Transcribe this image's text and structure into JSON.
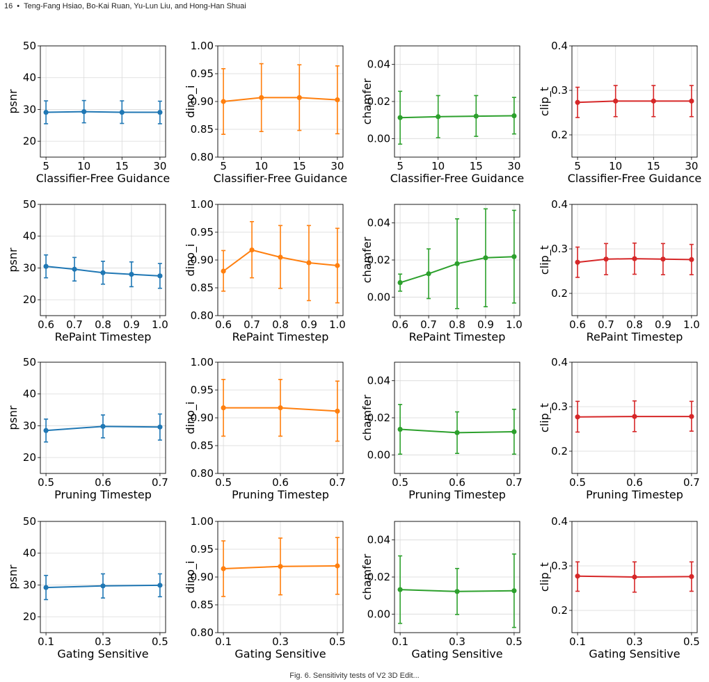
{
  "header": {
    "page_number": "16",
    "separator": "•",
    "authors": "Teng-Fang Hsiao, Bo-Kai Ruan, Yu-Lun Liu, and Hong-Han Shuai"
  },
  "caption": "Fig. 6. Sensitivity tests of V2 3D Edit...",
  "colors": {
    "psnr": "#1f77b4",
    "dino_i": "#ff7f0e",
    "chamfer": "#2ca02c",
    "clip_t": "#d62728"
  },
  "chart_data": [
    {
      "type": "line",
      "row": 0,
      "col": 0,
      "xlabel": "Classifier-Free Guidance",
      "ylabel": "psnr",
      "categories": [
        "5",
        "10",
        "15",
        "30"
      ],
      "ylim": [
        15,
        50
      ],
      "yticks": [
        "20",
        "30",
        "40",
        "50"
      ],
      "color": "#1f77b4",
      "grid": true,
      "values": [
        29.1,
        29.3,
        29.1,
        29.1
      ],
      "err_low": [
        25.5,
        25.8,
        25.6,
        25.5
      ],
      "err_high": [
        32.7,
        32.8,
        32.7,
        32.6
      ]
    },
    {
      "type": "line",
      "row": 0,
      "col": 1,
      "xlabel": "Classifier-Free Guidance",
      "ylabel": "dino_i",
      "categories": [
        "5",
        "10",
        "15",
        "30"
      ],
      "ylim": [
        0.8,
        1.0
      ],
      "yticks": [
        "0.80",
        "0.85",
        "0.90",
        "0.95",
        "1.00"
      ],
      "color": "#ff7f0e",
      "grid": true,
      "values": [
        0.9,
        0.907,
        0.907,
        0.903
      ],
      "err_low": [
        0.841,
        0.846,
        0.848,
        0.842
      ],
      "err_high": [
        0.959,
        0.968,
        0.966,
        0.964
      ]
    },
    {
      "type": "line",
      "row": 0,
      "col": 2,
      "xlabel": "Classifier-Free Guidance",
      "ylabel": "chamfer",
      "categories": [
        "5",
        "10",
        "15",
        "30"
      ],
      "ylim": [
        -0.01,
        0.05
      ],
      "yticks": [
        "0.00",
        "0.02",
        "0.04"
      ],
      "color": "#2ca02c",
      "grid": true,
      "values": [
        0.0113,
        0.0118,
        0.0121,
        0.0123
      ],
      "err_low": [
        -0.003,
        0.0005,
        0.0012,
        0.0025
      ],
      "err_high": [
        0.0255,
        0.0232,
        0.0232,
        0.0222
      ]
    },
    {
      "type": "line",
      "row": 0,
      "col": 3,
      "xlabel": "Classifier-Free Guidance",
      "ylabel": "clip_t",
      "categories": [
        "5",
        "10",
        "15",
        "30"
      ],
      "ylim": [
        0.15,
        0.4
      ],
      "yticks": [
        "0.2",
        "0.3",
        "0.4"
      ],
      "color": "#d62728",
      "grid": true,
      "values": [
        0.273,
        0.276,
        0.276,
        0.276
      ],
      "err_low": [
        0.239,
        0.241,
        0.241,
        0.241
      ],
      "err_high": [
        0.307,
        0.311,
        0.311,
        0.311
      ]
    },
    {
      "type": "line",
      "row": 1,
      "col": 0,
      "xlabel": "RePaint Timestep",
      "ylabel": "psnr",
      "categories": [
        "0.6",
        "0.7",
        "0.8",
        "0.9",
        "1.0"
      ],
      "ylim": [
        15,
        50
      ],
      "yticks": [
        "20",
        "30",
        "40",
        "50"
      ],
      "color": "#1f77b4",
      "grid": true,
      "values": [
        30.5,
        29.6,
        28.5,
        28.0,
        27.5
      ],
      "err_low": [
        26.9,
        25.9,
        24.9,
        24.1,
        23.6
      ],
      "err_high": [
        34.1,
        33.3,
        32.1,
        31.9,
        31.4
      ]
    },
    {
      "type": "line",
      "row": 1,
      "col": 1,
      "xlabel": "RePaint Timestep",
      "ylabel": "dino_i",
      "categories": [
        "0.6",
        "0.7",
        "0.8",
        "0.9",
        "1.0"
      ],
      "ylim": [
        0.8,
        1.0
      ],
      "yticks": [
        "0.80",
        "0.85",
        "0.90",
        "0.95",
        "1.00"
      ],
      "color": "#ff7f0e",
      "grid": true,
      "values": [
        0.88,
        0.918,
        0.905,
        0.895,
        0.89
      ],
      "err_low": [
        0.844,
        0.868,
        0.849,
        0.827,
        0.823
      ],
      "err_high": [
        0.917,
        0.969,
        0.962,
        0.962,
        0.957
      ]
    },
    {
      "type": "line",
      "row": 1,
      "col": 2,
      "xlabel": "RePaint Timestep",
      "ylabel": "chamfer",
      "categories": [
        "0.6",
        "0.7",
        "0.8",
        "0.9",
        "1.0"
      ],
      "ylim": [
        -0.01,
        0.05
      ],
      "yticks": [
        "0.00",
        "0.02",
        "0.04"
      ],
      "color": "#2ca02c",
      "grid": true,
      "values": [
        0.0078,
        0.0126,
        0.018,
        0.0212,
        0.0218
      ],
      "err_low": [
        0.0032,
        -0.0008,
        -0.0062,
        -0.0052,
        -0.0032
      ],
      "err_high": [
        0.0124,
        0.026,
        0.0422,
        0.0476,
        0.0468
      ]
    },
    {
      "type": "line",
      "row": 1,
      "col": 3,
      "xlabel": "RePaint Timestep",
      "ylabel": "clip_t",
      "categories": [
        "0.6",
        "0.7",
        "0.8",
        "0.9",
        "1.0"
      ],
      "ylim": [
        0.15,
        0.4
      ],
      "yticks": [
        "0.2",
        "0.3",
        "0.4"
      ],
      "color": "#d62728",
      "grid": true,
      "values": [
        0.27,
        0.277,
        0.278,
        0.277,
        0.276
      ],
      "err_low": [
        0.236,
        0.242,
        0.243,
        0.242,
        0.242
      ],
      "err_high": [
        0.304,
        0.312,
        0.313,
        0.312,
        0.31
      ]
    },
    {
      "type": "line",
      "row": 2,
      "col": 0,
      "xlabel": "Pruning Timestep",
      "ylabel": "psnr",
      "categories": [
        "0.5",
        "0.6",
        "0.7"
      ],
      "ylim": [
        15,
        50
      ],
      "yticks": [
        "20",
        "30",
        "40",
        "50"
      ],
      "color": "#1f77b4",
      "grid": true,
      "values": [
        28.5,
        29.8,
        29.6
      ],
      "err_low": [
        24.9,
        26.2,
        25.5
      ],
      "err_high": [
        32.1,
        33.4,
        33.7
      ]
    },
    {
      "type": "line",
      "row": 2,
      "col": 1,
      "xlabel": "Pruning Timestep",
      "ylabel": "dino_i",
      "categories": [
        "0.5",
        "0.6",
        "0.7"
      ],
      "ylim": [
        0.8,
        1.0
      ],
      "yticks": [
        "0.80",
        "0.85",
        "0.90",
        "0.95",
        "1.00"
      ],
      "color": "#ff7f0e",
      "grid": true,
      "values": [
        0.918,
        0.918,
        0.912
      ],
      "err_low": [
        0.867,
        0.867,
        0.858
      ],
      "err_high": [
        0.969,
        0.969,
        0.966
      ]
    },
    {
      "type": "line",
      "row": 2,
      "col": 2,
      "xlabel": "Pruning Timestep",
      "ylabel": "chamfer",
      "categories": [
        "0.5",
        "0.6",
        "0.7"
      ],
      "ylim": [
        -0.01,
        0.05
      ],
      "yticks": [
        "0.00",
        "0.02",
        "0.04"
      ],
      "color": "#2ca02c",
      "grid": true,
      "values": [
        0.0138,
        0.012,
        0.0125
      ],
      "err_low": [
        0.0004,
        0.0008,
        0.0004
      ],
      "err_high": [
        0.0272,
        0.0232,
        0.0246
      ]
    },
    {
      "type": "line",
      "row": 2,
      "col": 3,
      "xlabel": "Pruning Timestep",
      "ylabel": "clip_t",
      "categories": [
        "0.5",
        "0.6",
        "0.7"
      ],
      "ylim": [
        0.15,
        0.4
      ],
      "yticks": [
        "0.2",
        "0.3",
        "0.4"
      ],
      "color": "#d62728",
      "grid": true,
      "values": [
        0.277,
        0.278,
        0.278
      ],
      "err_low": [
        0.243,
        0.244,
        0.245
      ],
      "err_high": [
        0.312,
        0.313,
        0.312
      ]
    },
    {
      "type": "line",
      "row": 3,
      "col": 0,
      "xlabel": "Gating Sensitive",
      "ylabel": "psnr",
      "categories": [
        "0.1",
        "0.3",
        "0.5"
      ],
      "ylim": [
        15,
        50
      ],
      "yticks": [
        "20",
        "30",
        "40",
        "50"
      ],
      "color": "#1f77b4",
      "grid": true,
      "values": [
        29.2,
        29.7,
        29.9
      ],
      "err_low": [
        25.4,
        25.9,
        26.3
      ],
      "err_high": [
        33.0,
        33.5,
        33.5
      ]
    },
    {
      "type": "line",
      "row": 3,
      "col": 1,
      "xlabel": "Gating Sensitive",
      "ylabel": "dino_i",
      "categories": [
        "0.1",
        "0.3",
        "0.5"
      ],
      "ylim": [
        0.8,
        1.0
      ],
      "yticks": [
        "0.80",
        "0.85",
        "0.90",
        "0.95",
        "1.00"
      ],
      "color": "#ff7f0e",
      "grid": true,
      "values": [
        0.915,
        0.919,
        0.92
      ],
      "err_low": [
        0.865,
        0.868,
        0.869
      ],
      "err_high": [
        0.965,
        0.97,
        0.971
      ]
    },
    {
      "type": "line",
      "row": 3,
      "col": 2,
      "xlabel": "Gating Sensitive",
      "ylabel": "chamfer",
      "categories": [
        "0.1",
        "0.3",
        "0.5"
      ],
      "ylim": [
        -0.01,
        0.05
      ],
      "yticks": [
        "0.00",
        "0.02",
        "0.04"
      ],
      "color": "#2ca02c",
      "grid": true,
      "values": [
        0.0132,
        0.0122,
        0.0126
      ],
      "err_low": [
        -0.005,
        -0.0002,
        -0.0072
      ],
      "err_high": [
        0.0314,
        0.0246,
        0.0324
      ]
    },
    {
      "type": "line",
      "row": 3,
      "col": 3,
      "xlabel": "Gating Sensitive",
      "ylabel": "clip_t",
      "categories": [
        "0.1",
        "0.3",
        "0.5"
      ],
      "ylim": [
        0.15,
        0.4
      ],
      "yticks": [
        "0.2",
        "0.3",
        "0.4"
      ],
      "color": "#d62728",
      "grid": true,
      "values": [
        0.277,
        0.275,
        0.276
      ],
      "err_low": [
        0.243,
        0.241,
        0.243
      ],
      "err_high": [
        0.309,
        0.309,
        0.309
      ]
    }
  ]
}
